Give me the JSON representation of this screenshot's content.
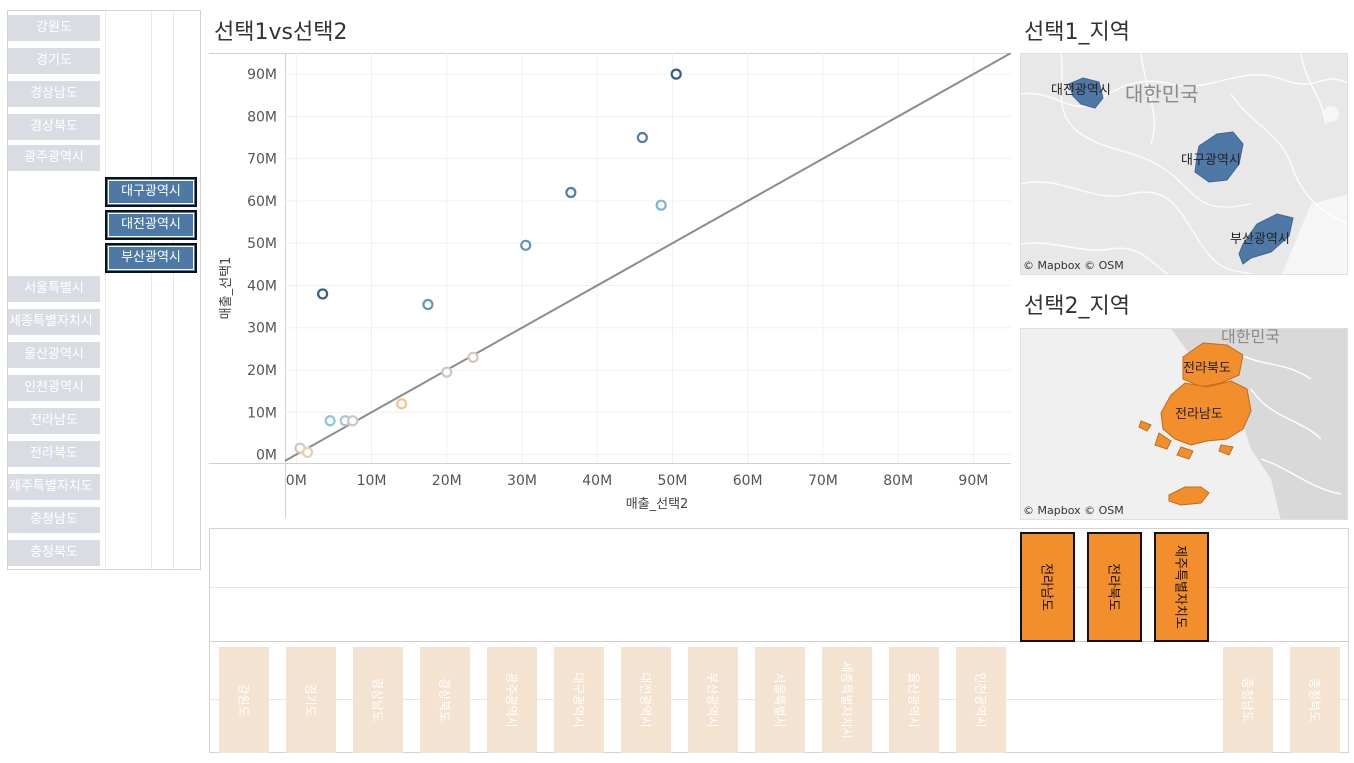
{
  "region1_list": {
    "items": [
      "강원도",
      "경기도",
      "경상남도",
      "경상북도",
      "광주광역시",
      "서울특별시",
      "세종특별자치시",
      "울산광역시",
      "인천광역시",
      "전라남도",
      "전라북도",
      "제주특별자치도",
      "충청남도",
      "충청북도"
    ],
    "selected": [
      "대구광역시",
      "대전광역시",
      "부산광역시"
    ]
  },
  "scatter": {
    "title": "선택1vs선택2"
  },
  "map1": {
    "title": "선택1_지역",
    "country_label": "대한민국",
    "region_labels": [
      "대전광역시",
      "대구광역시",
      "부산광역시"
    ],
    "credit": "© Mapbox © OSM",
    "fill_color": "#4e79a7"
  },
  "map2": {
    "title": "선택2_지역",
    "country_label": "대한민국",
    "region_labels": [
      "전라북도",
      "전라남도"
    ],
    "credit": "© Mapbox © OSM",
    "fill_color": "#f28e2b"
  },
  "region2_list": {
    "selected": [
      "전라남도",
      "전라북도",
      "제주특별자치도"
    ],
    "items": [
      "강원도",
      "경기도",
      "경상남도",
      "경상북도",
      "광주광역시",
      "대구광역시",
      "대전광역시",
      "부산광역시",
      "서울특별시",
      "세종특별자치시",
      "울산광역시",
      "인천광역시",
      "충청남도",
      "충청북도"
    ]
  },
  "chart_data": {
    "type": "scatter",
    "title": "선택1vs선택2",
    "xlabel": "매출_선택2",
    "ylabel": "매출_선택1",
    "x_ticks": [
      "0M",
      "10M",
      "20M",
      "30M",
      "40M",
      "50M",
      "60M",
      "70M",
      "80M",
      "90M"
    ],
    "y_ticks": [
      "0M",
      "10M",
      "20M",
      "30M",
      "40M",
      "50M",
      "60M",
      "70M",
      "80M",
      "90M"
    ],
    "xlim": [
      -1.5,
      95
    ],
    "ylim": [
      -2,
      95
    ],
    "units": "M",
    "grid": true,
    "reference_line": {
      "x": [
        -1.5,
        95
      ],
      "y": [
        -1.5,
        95
      ]
    },
    "points": [
      {
        "x": 50.5,
        "y": 90.0,
        "color": "#2f5f8a"
      },
      {
        "x": 46.0,
        "y": 75.0,
        "color": "#4f7fa8"
      },
      {
        "x": 36.5,
        "y": 62.0,
        "color": "#4f7fa8"
      },
      {
        "x": 48.5,
        "y": 59.0,
        "color": "#7ab3d6"
      },
      {
        "x": 30.5,
        "y": 49.5,
        "color": "#5f95bf"
      },
      {
        "x": 3.5,
        "y": 38.0,
        "color": "#2f5f8a"
      },
      {
        "x": 17.5,
        "y": 35.5,
        "color": "#5f95bf"
      },
      {
        "x": 23.5,
        "y": 23.0,
        "color": "#cfc8c0"
      },
      {
        "x": 20.0,
        "y": 19.5,
        "color": "#cfc8c0"
      },
      {
        "x": 14.0,
        "y": 12.0,
        "color": "#f5c38a"
      },
      {
        "x": 4.5,
        "y": 8.0,
        "color": "#8fc3df"
      },
      {
        "x": 6.5,
        "y": 8.0,
        "color": "#a9c4d6"
      },
      {
        "x": 7.5,
        "y": 8.0,
        "color": "#cfc8c0"
      },
      {
        "x": 0.5,
        "y": 1.5,
        "color": "#cfc8c0"
      },
      {
        "x": 1.5,
        "y": 0.5,
        "color": "#e8cfa8"
      }
    ]
  }
}
